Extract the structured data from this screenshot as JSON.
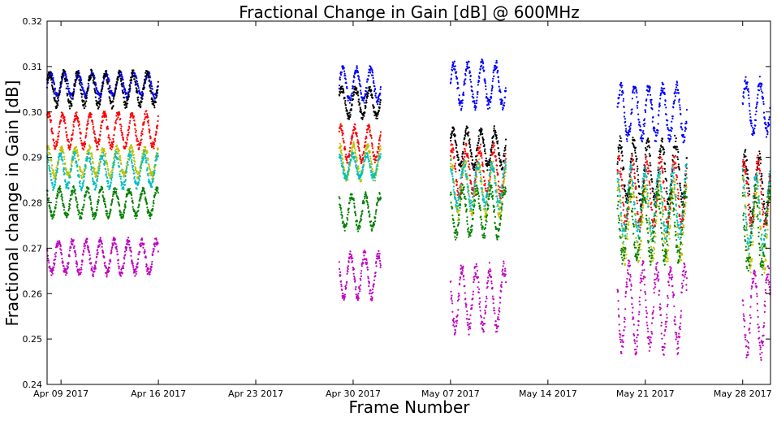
{
  "chart_data": {
    "type": "scatter",
    "title": "Fractional Change in Gain [dB] @ 600MHz",
    "xlabel": "Frame Number",
    "ylabel": "Fractional change in Gain [dB]",
    "ylim": [
      0.24,
      0.32
    ],
    "xlim": [
      "2017-04-08",
      "2017-05-30"
    ],
    "grid": false,
    "legend": "none",
    "x_ticks": [
      {
        "date": "2017-04-09",
        "label": "Apr 09 2017"
      },
      {
        "date": "2017-04-16",
        "label": "Apr 16 2017"
      },
      {
        "date": "2017-04-23",
        "label": "Apr 23 2017"
      },
      {
        "date": "2017-04-30",
        "label": "Apr 30 2017"
      },
      {
        "date": "2017-05-07",
        "label": "May 07 2017"
      },
      {
        "date": "2017-05-14",
        "label": "May 14 2017"
      },
      {
        "date": "2017-05-21",
        "label": "May 21 2017"
      },
      {
        "date": "2017-05-28",
        "label": "May 28 2017"
      }
    ],
    "y_ticks": [
      {
        "value": 0.24,
        "label": "0.24"
      },
      {
        "value": 0.25,
        "label": "0.25"
      },
      {
        "value": 0.26,
        "label": "0.26"
      },
      {
        "value": 0.27,
        "label": "0.27"
      },
      {
        "value": 0.28,
        "label": "0.28"
      },
      {
        "value": 0.29,
        "label": "0.29"
      },
      {
        "value": 0.3,
        "label": "0.30"
      },
      {
        "value": 0.31,
        "label": "0.31"
      },
      {
        "value": 0.32,
        "label": "0.32"
      }
    ],
    "observation_periods": [
      {
        "start": "2017-04-08",
        "end": "2017-04-16"
      },
      {
        "start": "2017-04-29",
        "end": "2017-05-02"
      },
      {
        "start": "2017-05-07",
        "end": "2017-05-11"
      },
      {
        "start": "2017-05-19",
        "end": "2017-05-24"
      },
      {
        "start": "2017-05-28",
        "end": "2017-05-30"
      }
    ],
    "series": [
      {
        "color": "#0000ff",
        "levels": [
          0.306,
          0.306,
          0.306,
          0.3,
          0.301
        ],
        "amplitude": [
          0.0025,
          0.0035,
          0.0045,
          0.0055,
          0.0055
        ]
      },
      {
        "color": "#000000",
        "levels": [
          0.305,
          0.302,
          0.292,
          0.287,
          0.283
        ],
        "amplitude": [
          0.0035,
          0.003,
          0.004,
          0.0065,
          0.007
        ]
      },
      {
        "color": "#ff0000",
        "levels": [
          0.296,
          0.293,
          0.287,
          0.282,
          0.282
        ],
        "amplitude": [
          0.0035,
          0.0035,
          0.005,
          0.007,
          0.007
        ]
      },
      {
        "color": "#bfbf00",
        "levels": [
          0.289,
          0.289,
          0.283,
          0.276,
          0.275
        ],
        "amplitude": [
          0.003,
          0.0035,
          0.0055,
          0.008,
          0.009
        ]
      },
      {
        "color": "#00bfbf",
        "levels": [
          0.287,
          0.288,
          0.284,
          0.28,
          0.278
        ],
        "amplitude": [
          0.0035,
          0.0025,
          0.0045,
          0.007,
          0.008
        ]
      },
      {
        "color": "#008000",
        "levels": [
          0.28,
          0.278,
          0.278,
          0.275,
          0.274
        ],
        "amplitude": [
          0.003,
          0.0035,
          0.005,
          0.007,
          0.008
        ]
      },
      {
        "color": "#bf00bf",
        "levels": [
          0.268,
          0.264,
          0.259,
          0.257,
          0.256
        ],
        "amplitude": [
          0.0035,
          0.0045,
          0.0065,
          0.0085,
          0.0085
        ]
      }
    ]
  }
}
